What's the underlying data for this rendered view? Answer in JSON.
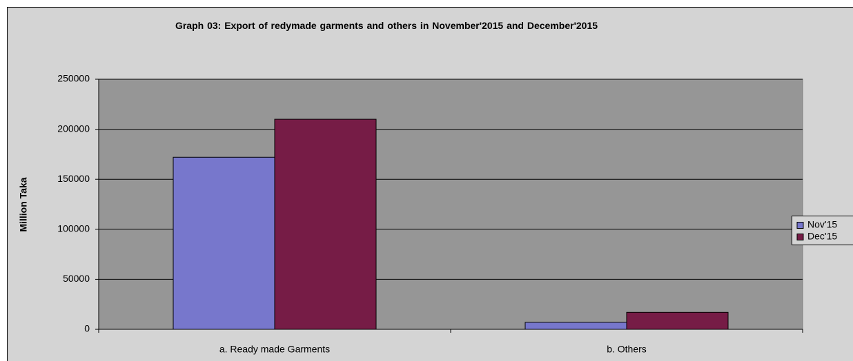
{
  "chart_data": {
    "type": "bar",
    "title": "Graph 03: Export of redymade garments and others in November'2015 and December'2015",
    "y_label": "Million Taka",
    "categories": [
      "a. Ready made Garments",
      "b. Others"
    ],
    "series": [
      {
        "name": "Nov'15",
        "color": "#7777cc",
        "values": [
          172000,
          7000
        ]
      },
      {
        "name": "Dec'15",
        "color": "#761c46",
        "values": [
          210000,
          17000
        ]
      }
    ],
    "ylim": [
      0,
      250000
    ],
    "yticks": [
      0,
      50000,
      100000,
      150000,
      200000,
      250000
    ],
    "grid": true,
    "legend": "right"
  }
}
